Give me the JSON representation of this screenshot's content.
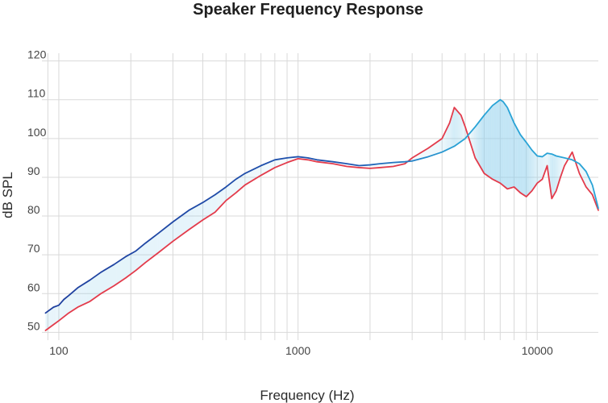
{
  "chart_data": {
    "type": "line",
    "title": "Speaker Frequency Response",
    "xlabel": "Frequency (Hz)",
    "ylabel": "dB SPL",
    "x_scale": "log",
    "xlim": [
      85,
      18000
    ],
    "ylim": [
      48,
      122
    ],
    "x_ticks": [
      {
        "value": 100,
        "label": "100"
      },
      {
        "value": 1000,
        "label": "1000"
      },
      {
        "value": 10000,
        "label": "10000"
      }
    ],
    "y_ticks": [
      {
        "value": 50,
        "label": "50"
      },
      {
        "value": 60,
        "label": "60"
      },
      {
        "value": 70,
        "label": "70"
      },
      {
        "value": 80,
        "label": "80"
      },
      {
        "value": 90,
        "label": "90"
      },
      {
        "value": 100,
        "label": "100"
      },
      {
        "value": 110,
        "label": "110"
      },
      {
        "value": 120,
        "label": "120"
      }
    ],
    "grid": true,
    "shaded_band_between_series": true,
    "colors": {
      "series_blue_low": "#1f3f9e",
      "series_blue_high": "#29a3d6",
      "series_red": "#e33b4b",
      "fill": "#8fd0ec",
      "grid": "#d9d9d9"
    },
    "series": [
      {
        "color": "#29a3d6",
        "x": [
          88,
          95,
          100,
          105,
          110,
          120,
          135,
          150,
          170,
          190,
          210,
          230,
          260,
          300,
          350,
          400,
          450,
          500,
          550,
          600,
          700,
          800,
          900,
          1000,
          1100,
          1200,
          1400,
          1600,
          1800,
          2000,
          2200,
          2500,
          2800,
          3000,
          3500,
          4000,
          4500,
          5000,
          5500,
          6000,
          6500,
          7000,
          7200,
          7500,
          8000,
          8500,
          9000,
          9500,
          10000,
          10500,
          11000,
          11500,
          12000,
          13000,
          14000,
          15000,
          16000,
          17000,
          18000
        ],
        "y": [
          55.0,
          56.5,
          57.0,
          58.5,
          59.5,
          61.5,
          63.5,
          65.5,
          67.5,
          69.5,
          71.0,
          73.0,
          75.5,
          78.5,
          81.5,
          83.5,
          85.5,
          87.5,
          89.5,
          91.0,
          93.0,
          94.5,
          95.0,
          95.3,
          95.0,
          94.5,
          94.0,
          93.5,
          93.0,
          93.2,
          93.5,
          93.8,
          94.0,
          94.2,
          95.3,
          96.5,
          98.0,
          100.0,
          103.0,
          106.0,
          108.5,
          110.0,
          109.5,
          108.0,
          104.0,
          101.0,
          99.0,
          97.0,
          95.5,
          95.3,
          96.2,
          96.0,
          95.5,
          95.0,
          94.5,
          93.5,
          91.5,
          88.0,
          82.0
        ]
      },
      {
        "color": "#e33b4b",
        "x": [
          88,
          95,
          100,
          110,
          120,
          135,
          150,
          170,
          190,
          210,
          230,
          260,
          300,
          350,
          400,
          450,
          500,
          550,
          600,
          700,
          800,
          900,
          1000,
          1100,
          1200,
          1400,
          1600,
          1800,
          2000,
          2200,
          2500,
          2800,
          3000,
          3500,
          4000,
          4300,
          4500,
          4800,
          5000,
          5500,
          6000,
          6500,
          7000,
          7500,
          8000,
          8500,
          9000,
          9500,
          10000,
          10500,
          11000,
          11500,
          12000,
          12500,
          13000,
          14000,
          15000,
          16000,
          17000,
          18000
        ],
        "y": [
          50.5,
          52.0,
          53.0,
          55.0,
          56.5,
          58.0,
          60.0,
          62.0,
          64.0,
          66.0,
          68.0,
          70.5,
          73.5,
          76.5,
          79.0,
          81.0,
          84.0,
          86.0,
          88.0,
          90.5,
          92.5,
          93.8,
          94.8,
          94.5,
          94.0,
          93.5,
          92.8,
          92.5,
          92.3,
          92.5,
          92.8,
          93.5,
          95.0,
          97.5,
          100.0,
          104.0,
          108.0,
          106.0,
          103.0,
          95.0,
          91.0,
          89.5,
          88.5,
          87.0,
          87.5,
          86.0,
          85.0,
          86.5,
          88.5,
          89.5,
          93.0,
          84.5,
          86.5,
          90.0,
          93.0,
          96.5,
          91.0,
          87.5,
          85.5,
          81.5
        ]
      }
    ]
  }
}
